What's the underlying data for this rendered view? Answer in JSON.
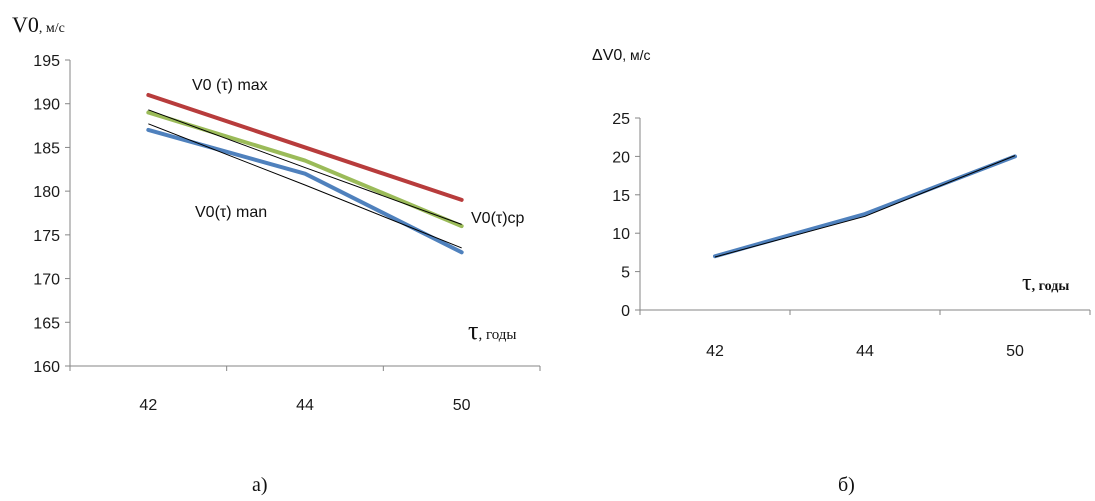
{
  "chart_data": [
    {
      "type": "line",
      "categories": [
        "42",
        "44",
        "50"
      ],
      "ylim": [
        160,
        195
      ],
      "ylabel_main": "V0",
      "ylabel_unit": ", м/с",
      "xlabel_main": "τ",
      "xlabel_unit": ", годы",
      "caption": "а)",
      "grid": false,
      "series": [
        {
          "name": "V0 (τ) max",
          "values": [
            191,
            185,
            179
          ],
          "color": "#b83c3c"
        },
        {
          "name": "V0(τ)cp",
          "values": [
            189,
            183.5,
            176
          ],
          "color": "#9bbb59"
        },
        {
          "name": "V0(τ) man",
          "values": [
            187,
            182,
            173
          ],
          "color": "#4f81bd"
        }
      ],
      "trendlines": [
        {
          "values": [
            189.3,
            182.7,
            176.2
          ],
          "color": "#000000"
        },
        {
          "values": [
            187.7,
            180.7,
            173.5
          ],
          "color": "#000000"
        }
      ]
    },
    {
      "type": "line",
      "categories": [
        "42",
        "44",
        "50"
      ],
      "ylim": [
        0,
        25
      ],
      "ylabel_main": "ΔV0",
      "ylabel_unit": ", м/с",
      "xlabel_main": "τ",
      "xlabel_unit": ", годы",
      "caption": "б)",
      "grid": false,
      "series": [
        {
          "name": "",
          "values": [
            7,
            12.5,
            20
          ],
          "color": "#4f81bd"
        }
      ],
      "trendlines": [
        {
          "values": [
            6.9,
            12.2,
            20.1
          ],
          "color": "#000000"
        }
      ]
    }
  ]
}
